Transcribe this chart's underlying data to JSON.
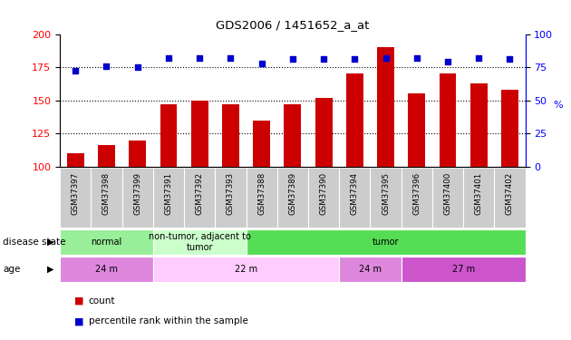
{
  "title": "GDS2006 / 1451652_a_at",
  "samples": [
    "GSM37397",
    "GSM37398",
    "GSM37399",
    "GSM37391",
    "GSM37392",
    "GSM37393",
    "GSM37388",
    "GSM37389",
    "GSM37390",
    "GSM37394",
    "GSM37395",
    "GSM37396",
    "GSM37400",
    "GSM37401",
    "GSM37402"
  ],
  "counts": [
    110,
    116,
    120,
    147,
    150,
    147,
    135,
    147,
    152,
    170,
    190,
    155,
    170,
    163,
    158
  ],
  "percentiles": [
    72,
    76,
    75,
    82,
    82,
    82,
    78,
    81,
    81,
    81,
    82,
    82,
    79,
    82,
    81
  ],
  "ylim_left": [
    100,
    200
  ],
  "ylim_right": [
    0,
    100
  ],
  "yticks_left": [
    100,
    125,
    150,
    175,
    200
  ],
  "yticks_right": [
    0,
    25,
    50,
    75,
    100
  ],
  "bar_color": "#cc0000",
  "dot_color": "#0000cc",
  "disease_state_groups": [
    {
      "label": "normal",
      "start": 0,
      "end": 3,
      "color": "#99ee99"
    },
    {
      "label": "non-tumor, adjacent to\ntumor",
      "start": 3,
      "end": 6,
      "color": "#ccffcc"
    },
    {
      "label": "tumor",
      "start": 6,
      "end": 15,
      "color": "#55dd55"
    }
  ],
  "age_groups": [
    {
      "label": "24 m",
      "start": 0,
      "end": 3,
      "color": "#dd88dd"
    },
    {
      "label": "22 m",
      "start": 3,
      "end": 9,
      "color": "#ffccff"
    },
    {
      "label": "24 m",
      "start": 9,
      "end": 11,
      "color": "#dd88dd"
    },
    {
      "label": "27 m",
      "start": 11,
      "end": 15,
      "color": "#cc55cc"
    }
  ],
  "legend_count_color": "#cc0000",
  "legend_pct_color": "#0000cc",
  "bg_color": "#ffffff",
  "xtick_area_color": "#cccccc",
  "row_label_disease": "disease state",
  "row_label_age": "age"
}
